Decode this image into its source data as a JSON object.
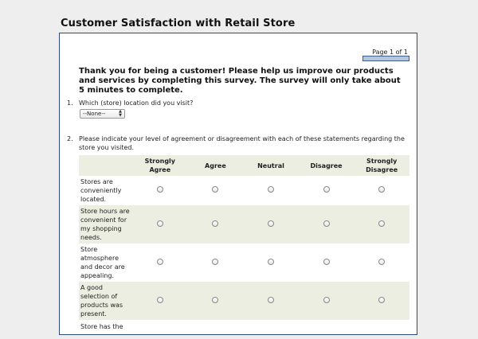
{
  "survey": {
    "title": "Customer Satisfaction with Retail Store",
    "page_indicator": "Page 1 of 1",
    "page_progress": 1.0,
    "intro": "Thank you for being a customer! Please help us improve our products and services by completing this survey. The survey will only take about 5 minutes to complete."
  },
  "questions": [
    {
      "number": "1.",
      "text": "Which (store) location did you visit?",
      "select_value": "--None--"
    },
    {
      "number": "2.",
      "text": "Please indicate your level of agreement or disagreement with each of these statements regarding the store you visited.",
      "columns": [
        "Strongly Agree",
        "Agree",
        "Neutral",
        "Disagree",
        "Strongly Disagree"
      ],
      "rows": [
        {
          "statement": "Stores are conveniently located."
        },
        {
          "statement": "Store hours are convenient for my shopping needs."
        },
        {
          "statement": "Store atmosphere and decor are appealing."
        },
        {
          "statement": "A good selection of products was present."
        },
        {
          "statement": "Store has the"
        }
      ]
    }
  ],
  "colors": {
    "frame_border": "#2a4a7a",
    "row_shade": "#ebeee0",
    "progress_fill": "#b5c6de"
  }
}
